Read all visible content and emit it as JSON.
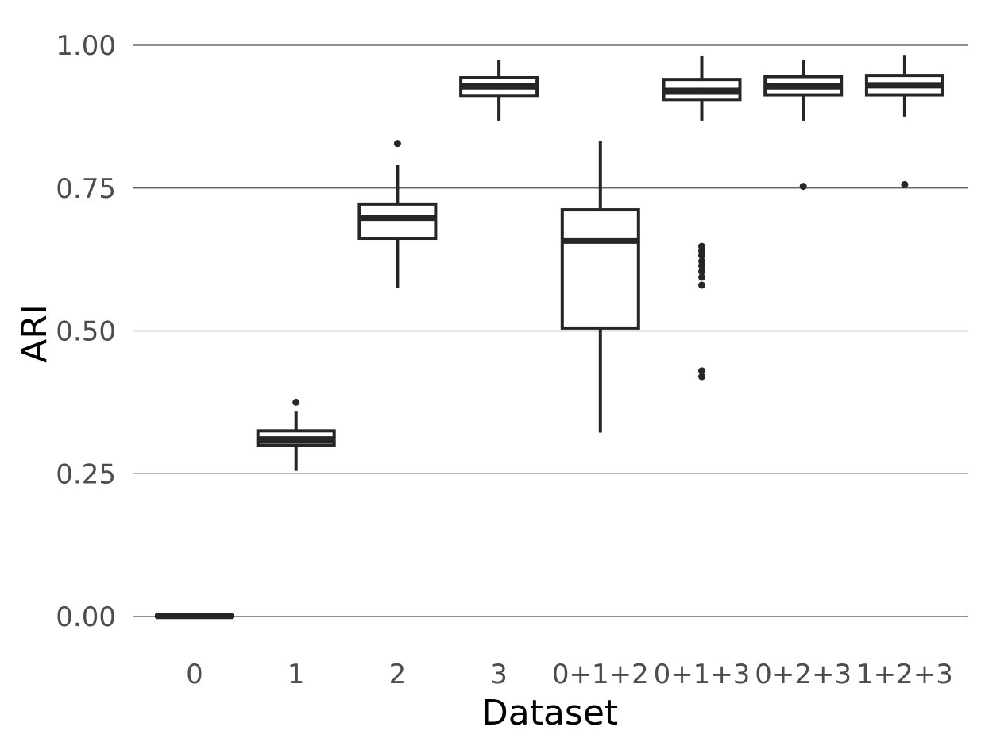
{
  "chart_data": {
    "type": "boxplot",
    "xlabel": "Dataset",
    "ylabel": "ARI",
    "ylim": [
      -0.07,
      1.03
    ],
    "y_ticks": [
      "0.00",
      "0.25",
      "0.50",
      "0.75",
      "1.00"
    ],
    "y_tick_values": [
      0,
      0.25,
      0.5,
      0.75,
      1.0
    ],
    "grid": "horizontal major",
    "categories": [
      "0",
      "1",
      "2",
      "3",
      "0+1+2",
      "0+1+3",
      "0+2+3",
      "1+2+3"
    ],
    "boxes": [
      {
        "category": "0",
        "min": 0.0,
        "q1": 0.0,
        "median": 0.001,
        "q3": 0.002,
        "max": 0.004,
        "outliers": []
      },
      {
        "category": "1",
        "min": 0.255,
        "q1": 0.3,
        "median": 0.31,
        "q3": 0.325,
        "max": 0.36,
        "outliers": [
          0.375
        ]
      },
      {
        "category": "2",
        "min": 0.575,
        "q1": 0.662,
        "median": 0.698,
        "q3": 0.722,
        "max": 0.79,
        "outliers": [
          0.828
        ]
      },
      {
        "category": "3",
        "min": 0.868,
        "q1": 0.912,
        "median": 0.928,
        "q3": 0.943,
        "max": 0.975,
        "outliers": []
      },
      {
        "category": "0+1+2",
        "min": 0.322,
        "q1": 0.505,
        "median": 0.658,
        "q3": 0.712,
        "max": 0.832,
        "outliers": []
      },
      {
        "category": "0+1+3",
        "min": 0.868,
        "q1": 0.905,
        "median": 0.92,
        "q3": 0.94,
        "max": 0.982,
        "outliers": [
          0.648,
          0.64,
          0.632,
          0.622,
          0.614,
          0.604,
          0.594,
          0.58,
          0.43,
          0.42
        ]
      },
      {
        "category": "0+2+3",
        "min": 0.868,
        "q1": 0.913,
        "median": 0.928,
        "q3": 0.945,
        "max": 0.975,
        "outliers": [
          0.753
        ]
      },
      {
        "category": "1+2+3",
        "min": 0.875,
        "q1": 0.913,
        "median": 0.93,
        "q3": 0.947,
        "max": 0.983,
        "outliers": [
          0.756
        ]
      }
    ]
  }
}
